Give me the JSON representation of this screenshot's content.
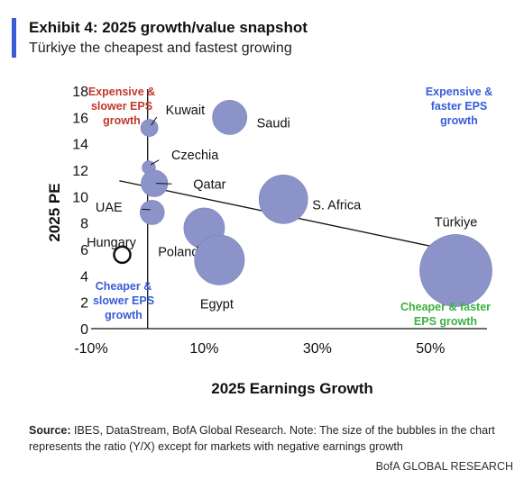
{
  "header": {
    "title": "Exhibit 4: 2025 growth/value snapshot",
    "subtitle": "Türkiye the cheapest and fastest growing"
  },
  "chart_data": {
    "type": "scatter",
    "variant": "bubble",
    "xlabel": "2025 Earnings Growth",
    "ylabel": "2025 PE",
    "xlim": [
      -10,
      60
    ],
    "ylim": [
      0,
      18
    ],
    "x_tick_labels": [
      "-10%",
      "10%",
      "30%",
      "50%"
    ],
    "x_tick_values": [
      -10,
      10,
      30,
      50
    ],
    "y_tick_labels": [
      "0",
      "2",
      "4",
      "6",
      "8",
      "10",
      "12",
      "14",
      "16",
      "18"
    ],
    "y_tick_values": [
      0,
      2,
      4,
      6,
      8,
      10,
      12,
      14,
      16,
      18
    ],
    "grid": false,
    "bubble_color": "#8c93c8",
    "points": [
      {
        "label": "Kuwait",
        "x": 0.3,
        "y": 15.2,
        "size": 0.5
      },
      {
        "label": "Saudi",
        "x": 14.5,
        "y": 16.0,
        "size": 2.0
      },
      {
        "label": "Czechia",
        "x": 0.2,
        "y": 12.2,
        "size": 0.3
      },
      {
        "label": "Qatar",
        "x": 1.2,
        "y": 11.0,
        "size": 1.2
      },
      {
        "label": "UAE",
        "x": 0.8,
        "y": 8.8,
        "size": 1.0
      },
      {
        "label": "S. Africa",
        "x": 24.0,
        "y": 9.8,
        "size": 4.0
      },
      {
        "label": "Poland",
        "x": 10.0,
        "y": 7.6,
        "size": 2.8
      },
      {
        "label": "Egypt",
        "x": 12.7,
        "y": 5.2,
        "size": 4.2
      },
      {
        "label": "Türkiye",
        "x": 54.5,
        "y": 4.4,
        "size": 8.8
      },
      {
        "label": "Hungary",
        "x": -4.5,
        "y": 5.6,
        "size": 2.0,
        "hollow": true
      }
    ],
    "trendline": {
      "x": [
        -5.0,
        55.0
      ],
      "y": [
        11.2,
        5.8
      ]
    },
    "quadrant_labels": [
      {
        "text": [
          "Expensive &",
          "slower EPS",
          "growth"
        ],
        "color": "#c0392b",
        "position": "top-left"
      },
      {
        "text": [
          "Expensive  &",
          "faster EPS",
          "growth"
        ],
        "color": "#3a5bd9",
        "position": "top-right"
      },
      {
        "text": [
          "Cheaper  &",
          "slower EPS",
          "growth"
        ],
        "color": "#3a5bd9",
        "position": "bottom-left"
      },
      {
        "text": [
          "Cheaper  & faster",
          "EPS growth"
        ],
        "color": "#3cb043",
        "position": "bottom-right"
      }
    ]
  },
  "footer": {
    "source_label": "Source:",
    "source_text": " IBES, DataStream, BofA Global Research. Note: The size of the bubbles in the chart represents the ratio (Y/X) except for markets with negative earnings growth",
    "brand": "BofA GLOBAL RESEARCH"
  }
}
